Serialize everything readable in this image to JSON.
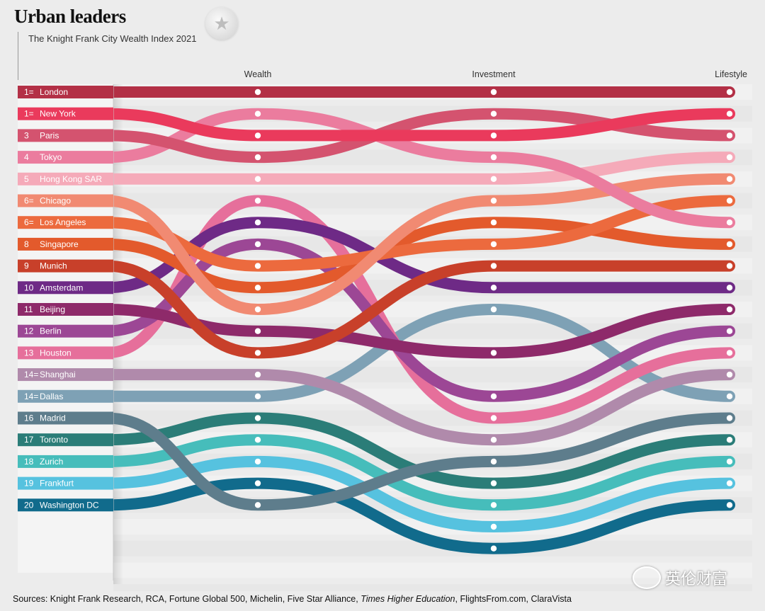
{
  "header": {
    "title": "Urban leaders",
    "subtitle": "The Knight Frank City Wealth Index 2021",
    "logo": "star-seal-icon"
  },
  "footer": {
    "sources_prefix": "Sources: Knight Frank Research, RCA, Fortune Global 500, Michelin, Five Star Alliance, ",
    "sources_italic": "Times Higher Education",
    "sources_suffix": ", FlightsFrom.com, ClaraVista"
  },
  "watermark": {
    "text": "英伦财富",
    "icon": "wechat-icon"
  },
  "chart_data": {
    "type": "bump",
    "title": "Urban leaders",
    "subtitle": "The Knight Frank City Wealth Index 2021",
    "columns": [
      "Wealth",
      "Investment",
      "Lifestyle"
    ],
    "rank_scale": "1 = top position; 23 positions shown per column",
    "series": [
      {
        "rank_label": "1=",
        "city": "London",
        "color": "#b33046",
        "positions": [
          1,
          1,
          1
        ]
      },
      {
        "rank_label": "1=",
        "city": "New York",
        "color": "#ea3a5c",
        "positions": [
          3,
          3,
          2
        ]
      },
      {
        "rank_label": "3",
        "city": "Paris",
        "color": "#d4536f",
        "positions": [
          4,
          2,
          3
        ]
      },
      {
        "rank_label": "4",
        "city": "Tokyo",
        "color": "#eb7c9e",
        "positions": [
          2,
          4,
          7
        ]
      },
      {
        "rank_label": "5",
        "city": "Hong Kong SAR",
        "color": "#f5aab9",
        "positions": [
          5,
          5,
          4
        ]
      },
      {
        "rank_label": "6=",
        "city": "Chicago",
        "color": "#f18a72",
        "positions": [
          11,
          6,
          5
        ]
      },
      {
        "rank_label": "6=",
        "city": "Los Angeles",
        "color": "#ec6a3e",
        "positions": [
          9,
          8,
          6
        ]
      },
      {
        "rank_label": "8",
        "city": "Singapore",
        "color": "#e35a2c",
        "positions": [
          10,
          7,
          8
        ]
      },
      {
        "rank_label": "9",
        "city": "Munich",
        "color": "#c8402a",
        "positions": [
          13,
          9,
          9
        ]
      },
      {
        "rank_label": "10",
        "city": "Amsterdam",
        "color": "#6e2a86",
        "positions": [
          7,
          10,
          10
        ]
      },
      {
        "rank_label": "11",
        "city": "Beijing",
        "color": "#8e2a6a",
        "positions": [
          12,
          13,
          11
        ]
      },
      {
        "rank_label": "12",
        "city": "Berlin",
        "color": "#9c4795",
        "positions": [
          8,
          15,
          12
        ]
      },
      {
        "rank_label": "13",
        "city": "Houston",
        "color": "#e66f9b",
        "positions": [
          6,
          16,
          13
        ]
      },
      {
        "rank_label": "14=",
        "city": "Shanghai",
        "color": "#b08aab",
        "positions": [
          14,
          17,
          14
        ]
      },
      {
        "rank_label": "14=",
        "city": "Dallas",
        "color": "#7ea1b5",
        "positions": [
          15,
          11,
          15
        ]
      },
      {
        "rank_label": "16",
        "city": "Madrid",
        "color": "#5e7d8c",
        "positions": [
          20,
          18,
          16
        ]
      },
      {
        "rank_label": "17",
        "city": "Toronto",
        "color": "#2b7d78",
        "positions": [
          16,
          19,
          17
        ]
      },
      {
        "rank_label": "18",
        "city": "Zurich",
        "color": "#46bdbb",
        "positions": [
          17,
          20,
          18
        ]
      },
      {
        "rank_label": "19",
        "city": "Frankfurt",
        "color": "#56c2df",
        "positions": [
          18,
          21,
          19
        ]
      },
      {
        "rank_label": "20",
        "city": "Washington DC",
        "color": "#116b8c",
        "positions": [
          19,
          22,
          20
        ]
      }
    ]
  }
}
